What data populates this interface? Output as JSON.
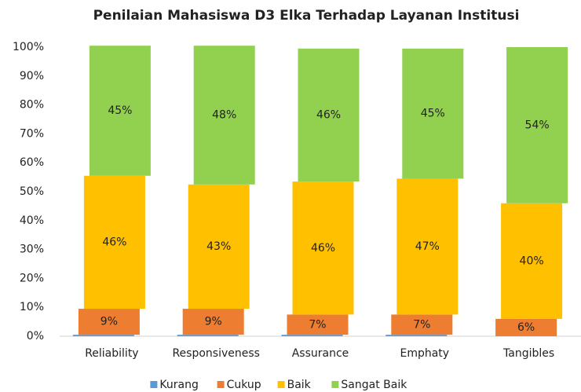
{
  "chart_data": {
    "type": "stacked_bar",
    "title": "Penilaian Mahasiswa D3 Elka Terhadap Layanan Institusi",
    "categories": [
      "Reliability",
      "Responsiveness",
      "Assurance",
      "Emphaty",
      "Tangibles"
    ],
    "series": [
      {
        "name": "Kurang",
        "color": "#5b9bd5",
        "values": [
          0.5,
          0.5,
          0.5,
          0.5,
          0
        ]
      },
      {
        "name": "Cukup",
        "color": "#ed7d31",
        "values": [
          9,
          9,
          7,
          7,
          6
        ],
        "value_labels": [
          "9%",
          "9%",
          "7%",
          "7%",
          "6%"
        ]
      },
      {
        "name": "Baik",
        "color": "#ffc000",
        "values": [
          46,
          43,
          46,
          47,
          40
        ],
        "value_labels": [
          "46%",
          "43%",
          "46%",
          "47%",
          "40%"
        ]
      },
      {
        "name": "Sangat Baik",
        "color": "#92d050",
        "values": [
          45,
          48,
          46,
          45,
          54
        ],
        "value_labels": [
          "45%",
          "48%",
          "46%",
          "45%",
          "54%"
        ]
      }
    ],
    "ylim": [
      0,
      100
    ],
    "yticks": [
      {
        "value": 0,
        "label": "0%"
      },
      {
        "value": 10,
        "label": "10%"
      },
      {
        "value": 20,
        "label": "20%"
      },
      {
        "value": 30,
        "label": "30%"
      },
      {
        "value": 40,
        "label": "40%"
      },
      {
        "value": 50,
        "label": "50%"
      },
      {
        "value": 60,
        "label": "60%"
      },
      {
        "value": 70,
        "label": "70%"
      },
      {
        "value": 80,
        "label": "80%"
      },
      {
        "value": 90,
        "label": "90%"
      },
      {
        "value": 100,
        "label": "100%"
      }
    ],
    "legend": "bottom"
  }
}
